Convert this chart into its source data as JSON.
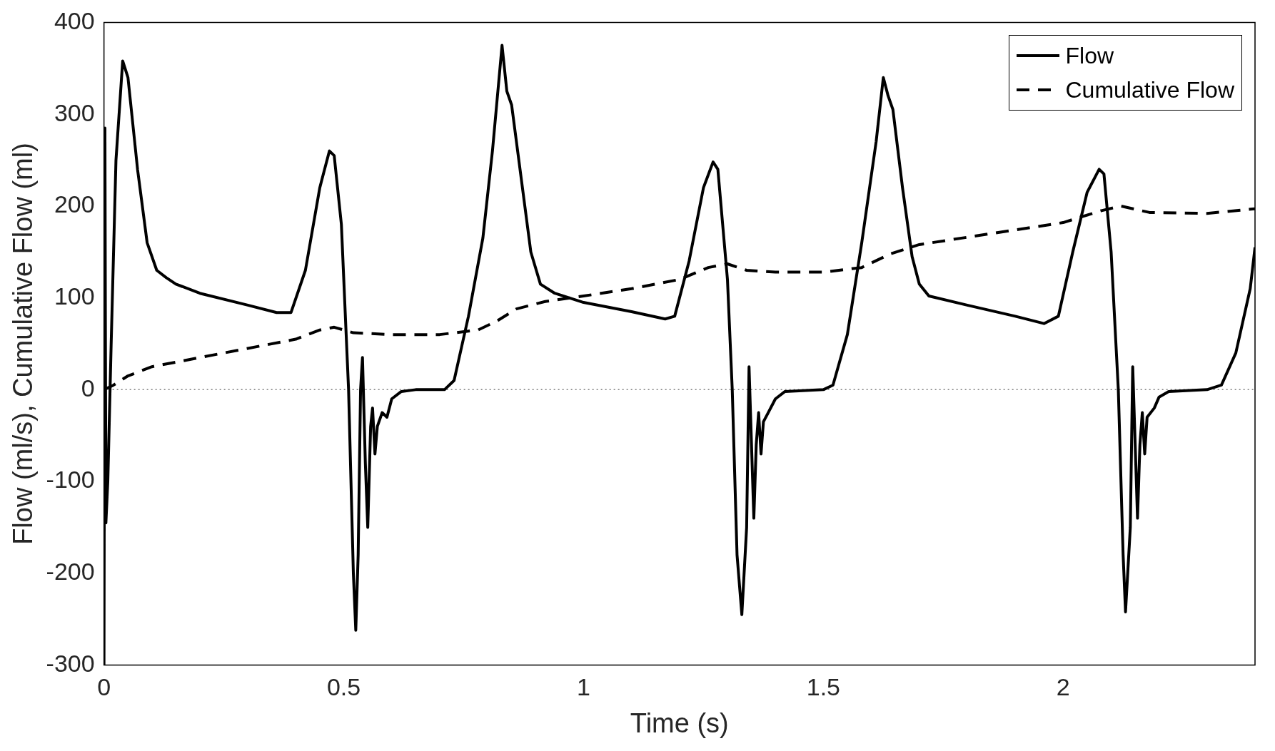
{
  "chart_data": {
    "type": "line",
    "xlabel": "Time (s)",
    "ylabel": "Flow (ml/s), Cumulative Flow (ml)",
    "xlim": [
      0,
      2.4
    ],
    "xticks": [
      0,
      0.5,
      1,
      1.5,
      2
    ],
    "ylim": [
      -300,
      400
    ],
    "yticks": [
      -300,
      -200,
      -100,
      0,
      100,
      200,
      300,
      400
    ],
    "grid": false,
    "legend": "top right",
    "marker": "none",
    "ref_lines": [
      {
        "axis": "y",
        "value": 0,
        "color": "#808080",
        "line_style": "dotted"
      }
    ],
    "series": [
      {
        "name": "Flow",
        "color": "#000000",
        "line_style": "solid",
        "x": [
          0,
          0.002,
          0.004,
          0.008,
          0.015,
          0.025,
          0.039,
          0.05,
          0.07,
          0.09,
          0.11,
          0.13,
          0.15,
          0.2,
          0.3,
          0.36,
          0.39,
          0.42,
          0.45,
          0.47,
          0.48,
          0.495,
          0.51,
          0.52,
          0.525,
          0.53,
          0.535,
          0.539,
          0.545,
          0.55,
          0.556,
          0.56,
          0.565,
          0.57,
          0.58,
          0.59,
          0.6,
          0.62,
          0.65,
          0.71,
          0.73,
          0.76,
          0.79,
          0.81,
          0.83,
          0.84,
          0.85,
          0.87,
          0.89,
          0.91,
          0.94,
          1.0,
          1.1,
          1.17,
          1.19,
          1.22,
          1.25,
          1.27,
          1.28,
          1.3,
          1.31,
          1.32,
          1.33,
          1.34,
          1.345,
          1.355,
          1.36,
          1.365,
          1.37,
          1.375,
          1.385,
          1.4,
          1.42,
          1.5,
          1.52,
          1.55,
          1.58,
          1.61,
          1.625,
          1.635,
          1.645,
          1.665,
          1.685,
          1.7,
          1.72,
          1.8,
          1.9,
          1.96,
          1.99,
          2.02,
          2.05,
          2.075,
          2.085,
          2.1,
          2.115,
          2.125,
          2.13,
          2.14,
          2.145,
          2.155,
          2.16,
          2.165,
          2.17,
          2.175,
          2.19,
          2.2,
          2.22,
          2.3,
          2.33,
          2.36,
          2.39,
          2.4
        ],
        "values": [
          -300,
          285,
          -145,
          -100,
          50,
          250,
          358,
          340,
          240,
          160,
          130,
          122,
          115,
          105,
          92,
          84,
          84,
          130,
          220,
          260,
          255,
          180,
          0,
          -200,
          -262,
          -180,
          0,
          35,
          -80,
          -150,
          -40,
          -20,
          -70,
          -40,
          -25,
          -30,
          -10,
          -2,
          0,
          0,
          10,
          80,
          165,
          260,
          375,
          325,
          310,
          230,
          150,
          115,
          105,
          95,
          85,
          77,
          80,
          140,
          220,
          248,
          240,
          120,
          0,
          -180,
          -245,
          -150,
          25,
          -140,
          -60,
          -25,
          -70,
          -35,
          -25,
          -10,
          -2,
          0,
          5,
          60,
          160,
          270,
          340,
          320,
          305,
          220,
          145,
          115,
          102,
          92,
          80,
          72,
          80,
          150,
          215,
          240,
          235,
          150,
          0,
          -180,
          -242,
          -150,
          25,
          -140,
          -60,
          -25,
          -70,
          -30,
          -20,
          -8,
          -2,
          0,
          5,
          40,
          110,
          155
        ]
      },
      {
        "name": "Cumulative Flow",
        "color": "#000000",
        "line_style": "dashed",
        "x": [
          0,
          0.02,
          0.05,
          0.1,
          0.2,
          0.3,
          0.4,
          0.45,
          0.48,
          0.52,
          0.6,
          0.7,
          0.78,
          0.82,
          0.86,
          0.92,
          1.0,
          1.1,
          1.2,
          1.26,
          1.3,
          1.34,
          1.4,
          1.5,
          1.58,
          1.64,
          1.7,
          1.8,
          1.9,
          2.0,
          2.08,
          2.12,
          2.18,
          2.3,
          2.4
        ],
        "values": [
          0,
          5,
          15,
          25,
          35,
          45,
          55,
          65,
          68,
          62,
          60,
          60,
          65,
          75,
          88,
          96,
          102,
          110,
          120,
          133,
          137,
          130,
          128,
          128,
          133,
          148,
          158,
          166,
          174,
          182,
          195,
          200,
          193,
          192,
          197
        ]
      }
    ]
  }
}
